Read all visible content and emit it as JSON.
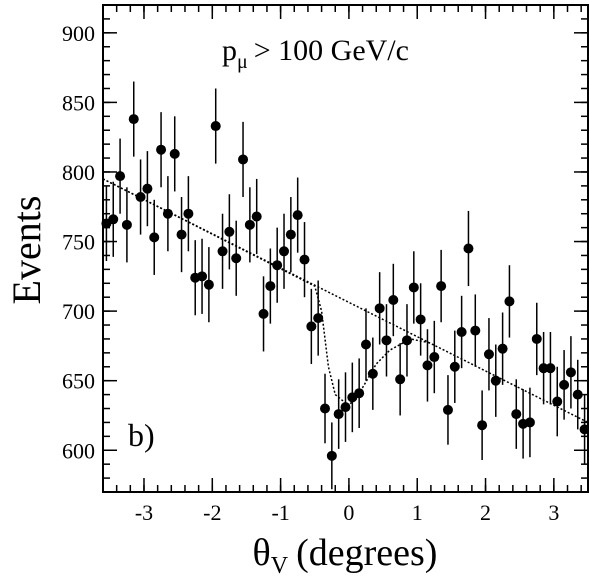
{
  "chart_data": {
    "type": "scatter",
    "y_label": "Events",
    "x_label_symbol": "θ",
    "x_label_sub": "V",
    "x_label_rest": "(degrees)",
    "annotation_main": "p",
    "annotation_sub": "μ",
    "annotation_rest": "> 100 GeV/c",
    "panel_label": "b)",
    "xlim": [
      -3.6,
      3.5
    ],
    "ylim": [
      570,
      920
    ],
    "xticks": [
      -3,
      -2,
      -1,
      0,
      1,
      2,
      3
    ],
    "yticks": [
      600,
      650,
      700,
      750,
      800,
      850,
      900
    ],
    "color": "#000000",
    "x": [
      -3.55,
      -3.45,
      -3.35,
      -3.25,
      -3.15,
      -3.05,
      -2.95,
      -2.85,
      -2.75,
      -2.65,
      -2.55,
      -2.45,
      -2.35,
      -2.25,
      -2.15,
      -2.05,
      -1.95,
      -1.85,
      -1.75,
      -1.65,
      -1.55,
      -1.45,
      -1.35,
      -1.25,
      -1.15,
      -1.05,
      -0.95,
      -0.85,
      -0.75,
      -0.65,
      -0.55,
      -0.45,
      -0.35,
      -0.25,
      -0.15,
      -0.05,
      0.05,
      0.15,
      0.25,
      0.35,
      0.45,
      0.55,
      0.65,
      0.75,
      0.85,
      0.95,
      1.05,
      1.15,
      1.25,
      1.35,
      1.45,
      1.55,
      1.65,
      1.75,
      1.85,
      1.95,
      2.05,
      2.15,
      2.25,
      2.35,
      2.45,
      2.55,
      2.65,
      2.75,
      2.85,
      2.95,
      3.05,
      3.15,
      3.25,
      3.35,
      3.45
    ],
    "values": [
      763,
      766,
      797,
      762,
      838,
      782,
      788,
      753,
      816,
      770,
      813,
      755,
      770,
      724,
      725,
      719,
      833,
      743,
      757,
      738,
      809,
      762,
      768,
      698,
      718,
      733,
      743,
      755,
      769,
      737,
      689,
      695,
      630,
      596,
      626,
      631,
      638,
      641,
      676,
      655,
      702,
      679,
      708,
      651,
      679,
      717,
      694,
      661,
      667,
      718,
      629,
      660,
      685,
      745,
      686,
      618,
      669,
      650,
      673,
      707,
      626,
      619,
      620,
      680,
      659,
      659,
      635,
      647,
      656,
      640,
      615
    ],
    "errors": [
      27,
      27,
      27,
      27,
      27,
      27,
      27,
      27,
      27,
      27,
      27,
      27,
      27,
      27,
      27,
      27,
      27,
      27,
      27,
      27,
      27,
      27,
      27,
      27,
      27,
      27,
      27,
      27,
      27,
      27,
      27,
      27,
      25,
      24,
      25,
      25,
      25,
      25,
      26,
      26,
      26,
      26,
      26,
      26,
      26,
      26,
      26,
      26,
      26,
      26,
      25,
      26,
      26,
      27,
      26,
      25,
      26,
      26,
      26,
      26,
      25,
      25,
      25,
      26,
      26,
      26,
      25,
      25,
      26,
      25,
      25
    ],
    "lines": [
      {
        "x": [
          -3.6,
          3.5
        ],
        "values": [
          795,
          620
        ]
      },
      {
        "x": [
          -3.6,
          -0.5,
          -0.4,
          -0.3,
          -0.2,
          0,
          0.2,
          0.4,
          0.6,
          0.9,
          1.2
        ],
        "values": [
          795,
          718,
          700,
          660,
          640,
          632,
          645,
          662,
          672,
          680,
          677
        ]
      }
    ]
  }
}
